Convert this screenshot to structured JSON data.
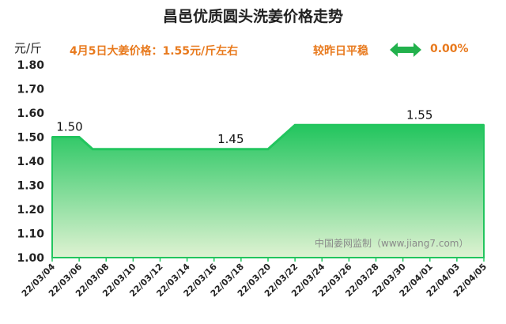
{
  "header": {
    "title": "昌邑优质圆头洗姜价格走势",
    "unit": "元/斤",
    "price_note": "4月5日大姜价格：1.55元/斤左右",
    "trend_text": "较昨日平稳",
    "trend_icon": "double-arrow-icon",
    "trend_change": "0.00%"
  },
  "colors": {
    "line": "#22c55e",
    "fill_top": "#22c55e",
    "fill_bottom": "#dff2d2",
    "accent_text": "#e87a1e"
  },
  "watermark": "中国姜网监制（www.jiang7.com）",
  "chart_data": {
    "type": "area",
    "title": "昌邑优质圆头洗姜价格走势",
    "ylabel": "元/斤",
    "ylim": [
      1.0,
      1.8
    ],
    "yticks": [
      "1.80",
      "1.70",
      "1.60",
      "1.50",
      "1.40",
      "1.30",
      "1.20",
      "1.10",
      "1.00"
    ],
    "xticks": [
      "22/03/04",
      "22/03/06",
      "22/03/08",
      "22/03/10",
      "22/03/12",
      "22/03/14",
      "22/03/16",
      "22/03/18",
      "22/03/20",
      "22/03/22",
      "22/03/24",
      "22/03/26",
      "22/03/28",
      "22/03/30",
      "22/04/01",
      "22/04/03",
      "22/04/05"
    ],
    "points": [
      {
        "x": "22/03/04",
        "y": 1.5
      },
      {
        "x": "22/03/06",
        "y": 1.5
      },
      {
        "x": "22/03/07",
        "y": 1.45
      },
      {
        "x": "22/03/20",
        "y": 1.45
      },
      {
        "x": "22/03/22",
        "y": 1.55
      },
      {
        "x": "22/04/05",
        "y": 1.55
      }
    ],
    "annotations": [
      {
        "x": "22/03/04",
        "y": 1.5,
        "text": "1.50"
      },
      {
        "x": "22/03/17",
        "y": 1.45,
        "text": "1.45"
      },
      {
        "x": "22/03/31",
        "y": 1.55,
        "text": "1.55"
      }
    ],
    "grid": false,
    "legend": "none"
  }
}
